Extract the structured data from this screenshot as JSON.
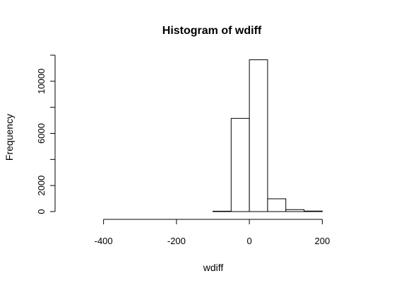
{
  "chart_data": {
    "type": "bar",
    "title": "Histogram of wdiff",
    "xlabel": "wdiff",
    "ylabel": "Frequency",
    "bin_edges": [
      -500,
      -450,
      -400,
      -350,
      -300,
      -250,
      -200,
      -150,
      -100,
      -50,
      0,
      50,
      100,
      150,
      200,
      250,
      300
    ],
    "values": [
      0,
      0,
      0,
      0,
      0,
      0,
      0,
      0,
      30,
      7150,
      11650,
      980,
      150,
      40,
      0,
      0
    ],
    "xlim": [
      -500,
      300
    ],
    "ylim": [
      0,
      12000
    ],
    "x_ticks": [
      -400,
      -200,
      0,
      200
    ],
    "x_tick_labels": [
      "-400",
      "-200",
      "0",
      "200"
    ],
    "y_ticks": [
      0,
      2000,
      4000,
      6000,
      8000,
      10000,
      12000
    ],
    "y_tick_labels": [
      "0",
      "2000",
      "",
      "6000",
      "",
      "10000",
      ""
    ],
    "grid": false,
    "colors": {
      "bar_fill": "#ffffff",
      "bar_stroke": "#000000"
    }
  }
}
